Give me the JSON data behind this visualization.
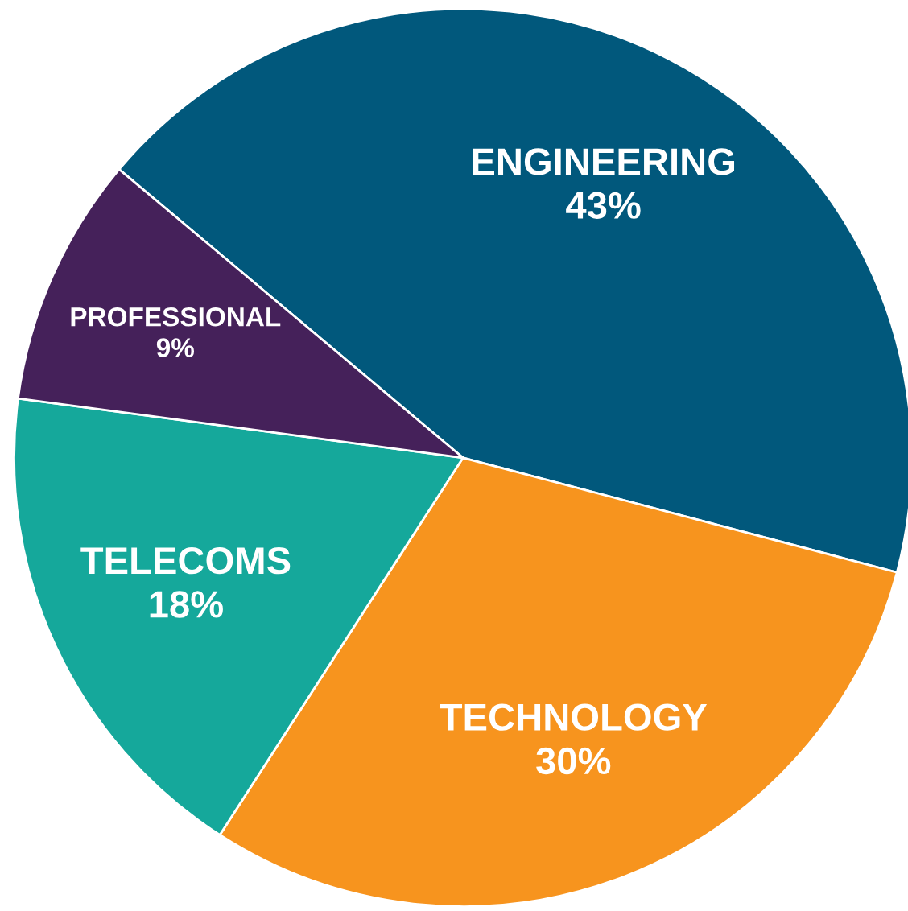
{
  "chart_data": {
    "type": "pie",
    "categories": [
      "ENGINEERING",
      "TECHNOLOGY",
      "TELECOMS",
      "PROFESSIONAL"
    ],
    "values": [
      43,
      30,
      18,
      9
    ],
    "value_labels": [
      "43%",
      "30%",
      "18%",
      "9%"
    ],
    "colors": [
      "#01587c",
      "#f7941e",
      "#15a89b",
      "#45215a"
    ]
  }
}
